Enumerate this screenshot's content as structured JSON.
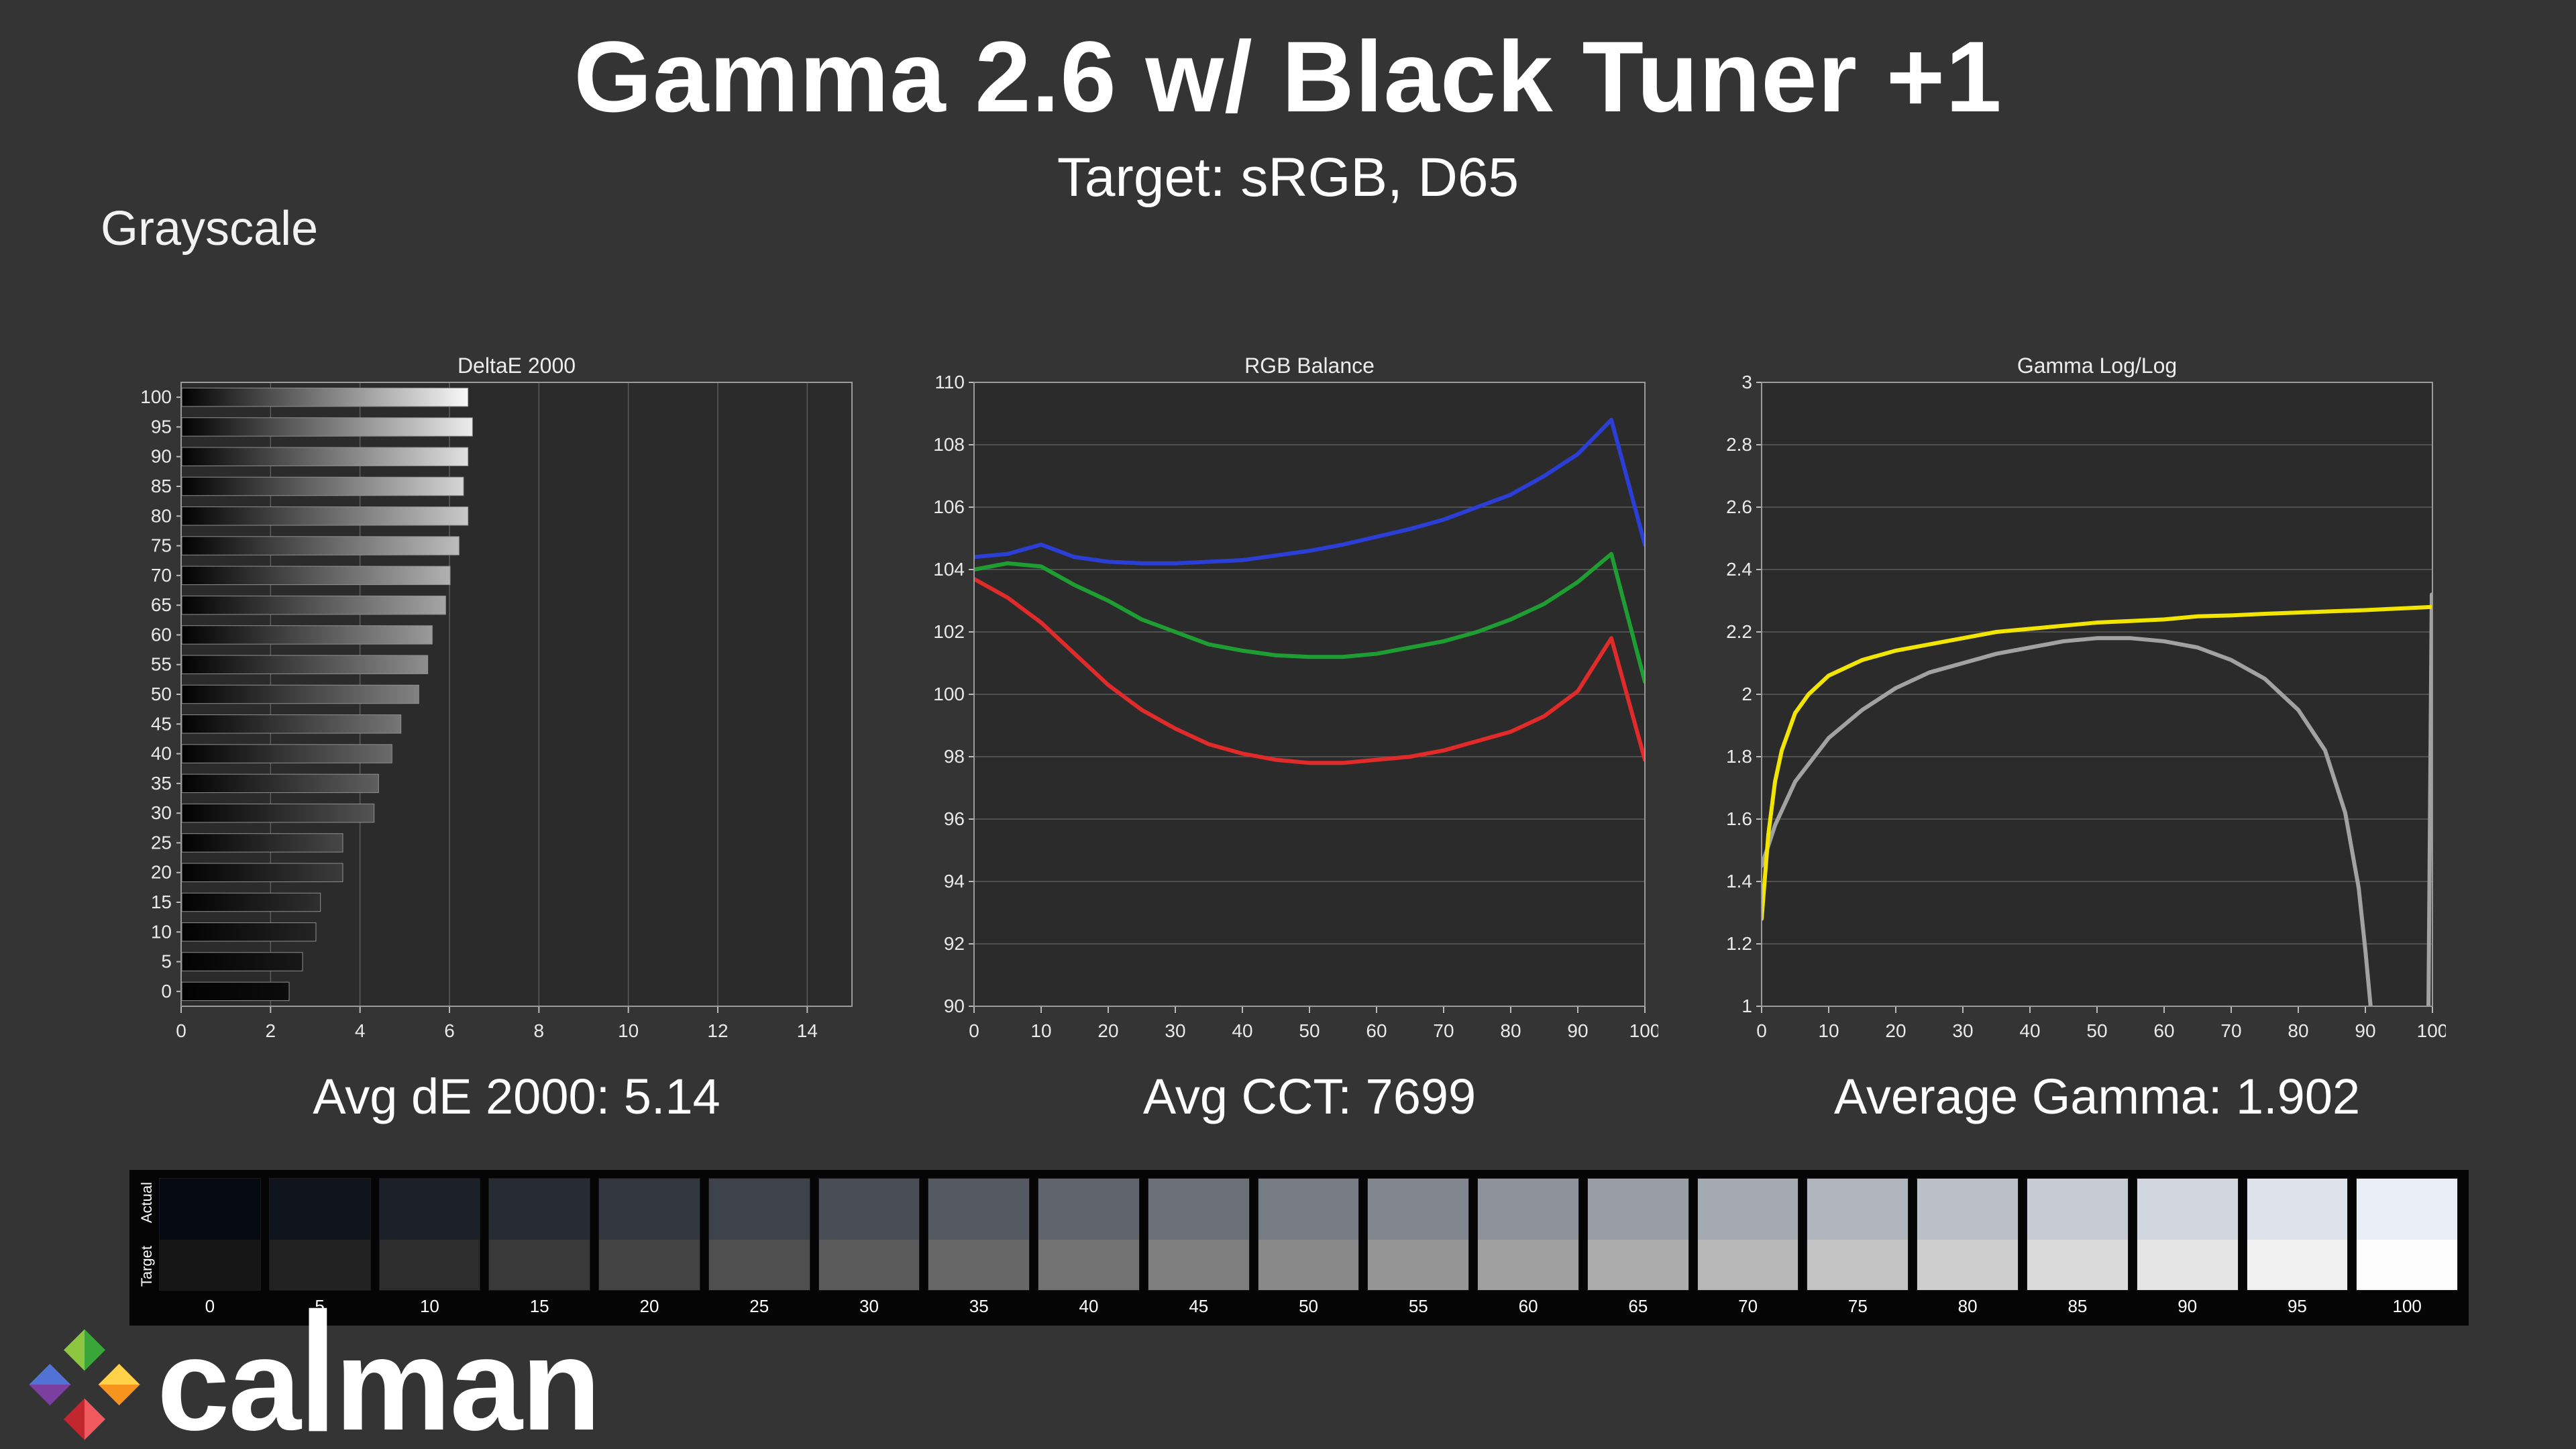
{
  "header": {
    "title": "Gamma 2.6 w/ Black Tuner +1",
    "subtitle": "Target: sRGB, D65",
    "section_label": "Grayscale"
  },
  "stats": {
    "deltae": "Avg dE 2000: 5.14",
    "cct": "Avg CCT: 7699",
    "gamma": "Average Gamma: 1.902"
  },
  "logo": {
    "part1": "ca",
    "tall": "l",
    "part2": "man"
  },
  "swatch_strip": {
    "row_labels": [
      "Actual",
      "Target"
    ],
    "swatches": [
      {
        "label": "0",
        "actual": "#040912",
        "target": "#161616"
      },
      {
        "label": "5",
        "actual": "#0f141d",
        "target": "#222222"
      },
      {
        "label": "10",
        "actual": "#1b2029",
        "target": "#2d2d2d"
      },
      {
        "label": "15",
        "actual": "#262b34",
        "target": "#393939"
      },
      {
        "label": "20",
        "actual": "#323740",
        "target": "#444444"
      },
      {
        "label": "25",
        "actual": "#3d424b",
        "target": "#505050"
      },
      {
        "label": "30",
        "actual": "#484d56",
        "target": "#5b5b5b"
      },
      {
        "label": "35",
        "actual": "#545962",
        "target": "#676767"
      },
      {
        "label": "40",
        "actual": "#5f646d",
        "target": "#727272"
      },
      {
        "label": "45",
        "actual": "#6b7079",
        "target": "#7e7e7e"
      },
      {
        "label": "50",
        "actual": "#767b84",
        "target": "#898989"
      },
      {
        "label": "55",
        "actual": "#81868f",
        "target": "#959595"
      },
      {
        "label": "60",
        "actual": "#8d929b",
        "target": "#a0a0a0"
      },
      {
        "label": "65",
        "actual": "#989da6",
        "target": "#acacac"
      },
      {
        "label": "70",
        "actual": "#a4a9b2",
        "target": "#b7b7b7"
      },
      {
        "label": "75",
        "actual": "#afb4bd",
        "target": "#c3c3c3"
      },
      {
        "label": "80",
        "actual": "#babfc8",
        "target": "#cecece"
      },
      {
        "label": "85",
        "actual": "#c6cbd4",
        "target": "#dadada"
      },
      {
        "label": "90",
        "actual": "#d1d6df",
        "target": "#e5e5e5"
      },
      {
        "label": "95",
        "actual": "#dde2eb",
        "target": "#f1f1f1"
      },
      {
        "label": "100",
        "actual": "#e8edf6",
        "target": "#fcfcfc"
      }
    ]
  },
  "chart_data": [
    {
      "id": "deltae",
      "type": "bar",
      "orientation": "horizontal",
      "title": "DeltaE 2000",
      "categories": [
        100,
        95,
        90,
        85,
        80,
        75,
        70,
        65,
        60,
        55,
        50,
        45,
        40,
        35,
        30,
        25,
        20,
        15,
        10,
        5,
        0
      ],
      "values": [
        6.4,
        6.5,
        6.4,
        6.3,
        6.4,
        6.2,
        6.0,
        5.9,
        5.6,
        5.5,
        5.3,
        4.9,
        4.7,
        4.4,
        4.3,
        3.6,
        3.6,
        3.1,
        3.0,
        2.7,
        2.4
      ],
      "xlim": [
        0,
        15
      ],
      "xticks": [
        0,
        2,
        4,
        6,
        8,
        10,
        12,
        14
      ],
      "bar_fill": "gradient-black-to-gray-level",
      "grid": "vertical"
    },
    {
      "id": "rgb",
      "type": "line",
      "title": "RGB Balance",
      "xlim": [
        0,
        100
      ],
      "ylim": [
        90,
        110
      ],
      "xticks": [
        0,
        10,
        20,
        30,
        40,
        50,
        60,
        70,
        80,
        90,
        100
      ],
      "yticks": [
        "90",
        "92",
        "94",
        "96",
        "98",
        "100",
        "102",
        "104",
        "106",
        "108",
        "110"
      ],
      "grid": "horizontal",
      "series": [
        {
          "name": "Blue",
          "color": "#2b3fd6",
          "points": [
            [
              0,
              104.4
            ],
            [
              5,
              104.5
            ],
            [
              10,
              104.8
            ],
            [
              15,
              104.4
            ],
            [
              20,
              104.25
            ],
            [
              25,
              104.2
            ],
            [
              30,
              104.2
            ],
            [
              35,
              104.25
            ],
            [
              40,
              104.3
            ],
            [
              45,
              104.45
            ],
            [
              50,
              104.6
            ],
            [
              55,
              104.8
            ],
            [
              60,
              105.05
            ],
            [
              65,
              105.3
            ],
            [
              70,
              105.6
            ],
            [
              75,
              106.0
            ],
            [
              80,
              106.4
            ],
            [
              85,
              107.0
            ],
            [
              90,
              107.7
            ],
            [
              95,
              108.8
            ],
            [
              100,
              104.8
            ]
          ]
        },
        {
          "name": "Green",
          "color": "#1e9e32",
          "points": [
            [
              0,
              104.0
            ],
            [
              5,
              104.2
            ],
            [
              10,
              104.1
            ],
            [
              15,
              103.5
            ],
            [
              20,
              103.0
            ],
            [
              25,
              102.4
            ],
            [
              30,
              102.0
            ],
            [
              35,
              101.6
            ],
            [
              40,
              101.4
            ],
            [
              45,
              101.25
            ],
            [
              50,
              101.2
            ],
            [
              55,
              101.2
            ],
            [
              60,
              101.3
            ],
            [
              65,
              101.5
            ],
            [
              70,
              101.7
            ],
            [
              75,
              102.0
            ],
            [
              80,
              102.4
            ],
            [
              85,
              102.9
            ],
            [
              90,
              103.6
            ],
            [
              95,
              104.5
            ],
            [
              100,
              100.4
            ]
          ]
        },
        {
          "name": "Red",
          "color": "#e12b2b",
          "points": [
            [
              0,
              103.7
            ],
            [
              5,
              103.1
            ],
            [
              10,
              102.3
            ],
            [
              15,
              101.3
            ],
            [
              20,
              100.3
            ],
            [
              25,
              99.5
            ],
            [
              30,
              98.9
            ],
            [
              35,
              98.4
            ],
            [
              40,
              98.1
            ],
            [
              45,
              97.9
            ],
            [
              50,
              97.8
            ],
            [
              55,
              97.8
            ],
            [
              60,
              97.9
            ],
            [
              65,
              98.0
            ],
            [
              70,
              98.2
            ],
            [
              75,
              98.5
            ],
            [
              80,
              98.8
            ],
            [
              85,
              99.3
            ],
            [
              90,
              100.1
            ],
            [
              95,
              101.8
            ],
            [
              100,
              97.9
            ]
          ]
        }
      ]
    },
    {
      "id": "gamma",
      "type": "line",
      "title": "Gamma Log/Log",
      "xlim": [
        0,
        100
      ],
      "ylim": [
        1,
        3
      ],
      "xticks": [
        0,
        10,
        20,
        30,
        40,
        50,
        60,
        70,
        80,
        90,
        100
      ],
      "yticks": [
        "1",
        "1.2",
        "1.4",
        "1.6",
        "1.8",
        "2",
        "2.2",
        "2.4",
        "2.6",
        "2.8",
        "3"
      ],
      "grid": "horizontal",
      "series": [
        {
          "name": "Target Gamma",
          "color": "#a2a2a2",
          "points": [
            [
              0,
              1.45
            ],
            [
              2,
              1.58
            ],
            [
              5,
              1.72
            ],
            [
              10,
              1.86
            ],
            [
              15,
              1.95
            ],
            [
              20,
              2.02
            ],
            [
              25,
              2.07
            ],
            [
              30,
              2.1
            ],
            [
              35,
              2.13
            ],
            [
              40,
              2.15
            ],
            [
              45,
              2.17
            ],
            [
              50,
              2.18
            ],
            [
              55,
              2.18
            ],
            [
              60,
              2.17
            ],
            [
              65,
              2.15
            ],
            [
              70,
              2.11
            ],
            [
              75,
              2.05
            ],
            [
              80,
              1.95
            ],
            [
              84,
              1.82
            ],
            [
              87,
              1.62
            ],
            [
              89,
              1.38
            ],
            [
              90,
              1.18
            ],
            [
              91,
              0.95
            ]
          ]
        },
        {
          "name": "Target Gamma End",
          "color": "#a2a2a2",
          "points": [
            [
              99.4,
              0.98
            ],
            [
              99.9,
              2.32
            ]
          ]
        },
        {
          "name": "Measured Gamma",
          "color": "#f2e500",
          "points": [
            [
              0,
              1.28
            ],
            [
              1,
              1.55
            ],
            [
              2,
              1.72
            ],
            [
              3,
              1.82
            ],
            [
              5,
              1.94
            ],
            [
              7,
              2.0
            ],
            [
              10,
              2.06
            ],
            [
              15,
              2.11
            ],
            [
              20,
              2.14
            ],
            [
              25,
              2.16
            ],
            [
              30,
              2.18
            ],
            [
              35,
              2.2
            ],
            [
              40,
              2.21
            ],
            [
              45,
              2.22
            ],
            [
              50,
              2.23
            ],
            [
              55,
              2.235
            ],
            [
              60,
              2.24
            ],
            [
              65,
              2.25
            ],
            [
              70,
              2.253
            ],
            [
              75,
              2.258
            ],
            [
              80,
              2.262
            ],
            [
              85,
              2.266
            ],
            [
              90,
              2.27
            ],
            [
              95,
              2.275
            ],
            [
              100,
              2.28
            ]
          ]
        }
      ]
    }
  ]
}
